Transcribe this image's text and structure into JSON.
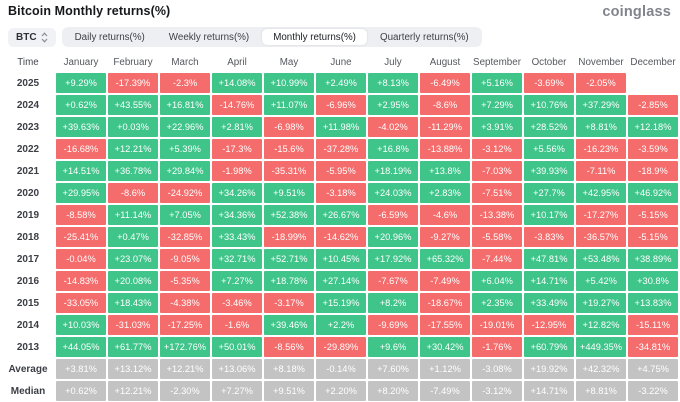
{
  "header": {
    "title": "Bitcoin Monthly returns(%)",
    "logo": "coinglass"
  },
  "controls": {
    "coin_selector": {
      "label": "BTC",
      "icon": "sort-arrows-icon"
    },
    "tabs": [
      {
        "label": "Daily returns(%)",
        "active": false
      },
      {
        "label": "Weekly returns(%)",
        "active": false
      },
      {
        "label": "Monthly returns(%)",
        "active": true
      },
      {
        "label": "Quarterly returns(%)",
        "active": false
      }
    ]
  },
  "chart_data": {
    "type": "heatmap",
    "title": "Bitcoin Monthly returns(%)",
    "columns": [
      "Time",
      "January",
      "February",
      "March",
      "April",
      "May",
      "June",
      "July",
      "August",
      "September",
      "October",
      "November",
      "December"
    ],
    "colors": {
      "positive": "#3fc48a",
      "negative": "#f56c6c",
      "neutral": "#c3c3c3"
    },
    "rows": [
      {
        "label": "2025",
        "values": [
          "+9.29%",
          "-17.39%",
          "-2.3%",
          "+14.08%",
          "+10.99%",
          "+2.49%",
          "+8.13%",
          "-6.49%",
          "+5.16%",
          "-3.69%",
          "-2.05%",
          ""
        ]
      },
      {
        "label": "2024",
        "values": [
          "+0.62%",
          "+43.55%",
          "+16.81%",
          "-14.76%",
          "+11.07%",
          "-6.96%",
          "+2.95%",
          "-8.6%",
          "+7.29%",
          "+10.76%",
          "+37.29%",
          "-2.85%"
        ]
      },
      {
        "label": "2023",
        "values": [
          "+39.63%",
          "+0.03%",
          "+22.96%",
          "+2.81%",
          "-6.98%",
          "+11.98%",
          "-4.02%",
          "-11.29%",
          "+3.91%",
          "+28.52%",
          "+8.81%",
          "+12.18%"
        ]
      },
      {
        "label": "2022",
        "values": [
          "-16.68%",
          "+12.21%",
          "+5.39%",
          "-17.3%",
          "-15.6%",
          "-37.28%",
          "+16.8%",
          "-13.88%",
          "-3.12%",
          "+5.56%",
          "-16.23%",
          "-3.59%"
        ]
      },
      {
        "label": "2021",
        "values": [
          "+14.51%",
          "+36.78%",
          "+29.84%",
          "-1.98%",
          "-35.31%",
          "-5.95%",
          "+18.19%",
          "+13.8%",
          "-7.03%",
          "+39.93%",
          "-7.11%",
          "-18.9%"
        ]
      },
      {
        "label": "2020",
        "values": [
          "+29.95%",
          "-8.6%",
          "-24.92%",
          "+34.26%",
          "+9.51%",
          "-3.18%",
          "+24.03%",
          "+2.83%",
          "-7.51%",
          "+27.7%",
          "+42.95%",
          "+46.92%"
        ]
      },
      {
        "label": "2019",
        "values": [
          "-8.58%",
          "+11.14%",
          "+7.05%",
          "+34.36%",
          "+52.38%",
          "+26.67%",
          "-6.59%",
          "-4.6%",
          "-13.38%",
          "+10.17%",
          "-17.27%",
          "-5.15%"
        ]
      },
      {
        "label": "2018",
        "values": [
          "-25.41%",
          "+0.47%",
          "-32.85%",
          "+33.43%",
          "-18.99%",
          "-14.62%",
          "+20.96%",
          "-9.27%",
          "-5.58%",
          "-3.83%",
          "-36.57%",
          "-5.15%"
        ]
      },
      {
        "label": "2017",
        "values": [
          "-0.04%",
          "+23.07%",
          "-9.05%",
          "+32.71%",
          "+52.71%",
          "+10.45%",
          "+17.92%",
          "+65.32%",
          "-7.44%",
          "+47.81%",
          "+53.48%",
          "+38.89%"
        ]
      },
      {
        "label": "2016",
        "values": [
          "-14.83%",
          "+20.08%",
          "-5.35%",
          "+7.27%",
          "+18.78%",
          "+27.14%",
          "-7.67%",
          "-7.49%",
          "+6.04%",
          "+14.71%",
          "+5.42%",
          "+30.8%"
        ]
      },
      {
        "label": "2015",
        "values": [
          "-33.05%",
          "+18.43%",
          "-4.38%",
          "-3.46%",
          "-3.17%",
          "+15.19%",
          "+8.2%",
          "-18.67%",
          "+2.35%",
          "+33.49%",
          "+19.27%",
          "+13.83%"
        ]
      },
      {
        "label": "2014",
        "values": [
          "+10.03%",
          "-31.03%",
          "-17.25%",
          "-1.6%",
          "+39.46%",
          "+2.2%",
          "-9.69%",
          "-17.55%",
          "-19.01%",
          "-12.95%",
          "+12.82%",
          "-15.11%"
        ]
      },
      {
        "label": "2013",
        "values": [
          "+44.05%",
          "+61.77%",
          "+172.76%",
          "+50.01%",
          "-8.56%",
          "-29.89%",
          "+9.6%",
          "+30.42%",
          "-1.76%",
          "+60.79%",
          "+449.35%",
          "-34.81%"
        ]
      },
      {
        "label": "Average",
        "style": "neutral",
        "values": [
          "+3.81%",
          "+13.12%",
          "+12.21%",
          "+13.06%",
          "+8.18%",
          "-0.14%",
          "+7.60%",
          "+1.12%",
          "-3.08%",
          "+19.92%",
          "+42.32%",
          "+4.75%"
        ]
      },
      {
        "label": "Median",
        "style": "neutral",
        "values": [
          "+0.62%",
          "+12.21%",
          "-2.30%",
          "+7.27%",
          "+9.51%",
          "+2.20%",
          "+8.20%",
          "-7.49%",
          "-3.12%",
          "+14.71%",
          "+8.81%",
          "-3.22%"
        ]
      }
    ]
  }
}
